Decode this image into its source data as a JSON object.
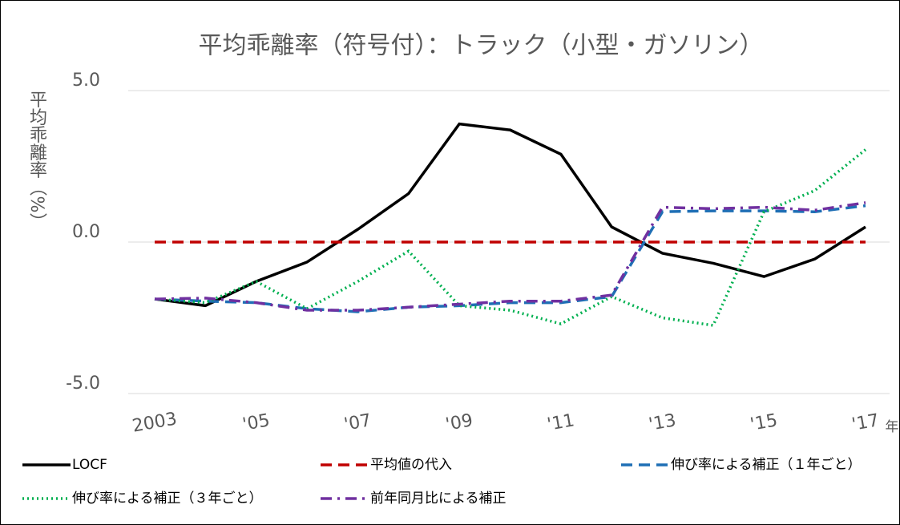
{
  "chart_data": {
    "type": "line",
    "title": "平均乖離率（符号付）：トラック（小型・ガソリン）",
    "y_label": "平均乖離率（%）",
    "x_label": "年",
    "x": [
      2003,
      2004,
      2005,
      2006,
      2007,
      2008,
      2009,
      2010,
      2011,
      2012,
      2013,
      2014,
      2015,
      2016,
      2017
    ],
    "xlim": [
      2003,
      2017
    ],
    "xticks": [
      {
        "value": 2003,
        "label": "2003"
      },
      {
        "value": 2005,
        "label": "'05"
      },
      {
        "value": 2007,
        "label": "'07"
      },
      {
        "value": 2009,
        "label": "'09"
      },
      {
        "value": 2011,
        "label": "'11"
      },
      {
        "value": 2013,
        "label": "'13"
      },
      {
        "value": 2015,
        "label": "'15"
      },
      {
        "value": 2017,
        "label": "'17"
      }
    ],
    "ylim": [
      -5,
      5
    ],
    "yticks": [
      {
        "value": -5,
        "label": "-5.0"
      },
      {
        "value": 0,
        "label": "0.0"
      },
      {
        "value": 5,
        "label": "5.0"
      }
    ],
    "grid": true,
    "legend": "bottom",
    "series": [
      {
        "name": "LOCF",
        "color": "#000000",
        "style": "solid",
        "values": [
          -1.88,
          -2.1,
          -1.3,
          -0.66,
          0.42,
          1.6,
          3.9,
          3.7,
          2.9,
          0.5,
          -0.37,
          -0.7,
          -1.14,
          -0.56,
          0.5
        ]
      },
      {
        "name": "平均値の代入",
        "color": "#c00000",
        "style": "dashed",
        "values": [
          0,
          0,
          0,
          0,
          0,
          0,
          0,
          0,
          0,
          0,
          0,
          0,
          0,
          0,
          0
        ]
      },
      {
        "name": "伸び率による補正（１年ごと）",
        "color": "#1f6fb5",
        "style": "dashed",
        "values": [
          -1.88,
          -1.95,
          -2.0,
          -2.2,
          -2.3,
          -2.15,
          -2.1,
          -2.0,
          -2.0,
          -1.8,
          1.0,
          1.03,
          1.03,
          1.0,
          1.2
        ]
      },
      {
        "name": "伸び率による補正（３年ごと）",
        "color": "#00b050",
        "style": "dotted",
        "values": [
          -1.88,
          -2.0,
          -1.3,
          -2.2,
          -1.3,
          -0.3,
          -2.1,
          -2.25,
          -2.7,
          -1.8,
          -2.5,
          -2.75,
          1.0,
          1.7,
          3.05
        ]
      },
      {
        "name": "前年同月比による補正",
        "color": "#7030a0",
        "style": "dashdot",
        "values": [
          -1.88,
          -1.85,
          -2.0,
          -2.25,
          -2.25,
          -2.15,
          -2.05,
          -1.95,
          -1.95,
          -1.75,
          1.15,
          1.1,
          1.15,
          1.05,
          1.3
        ]
      }
    ]
  }
}
